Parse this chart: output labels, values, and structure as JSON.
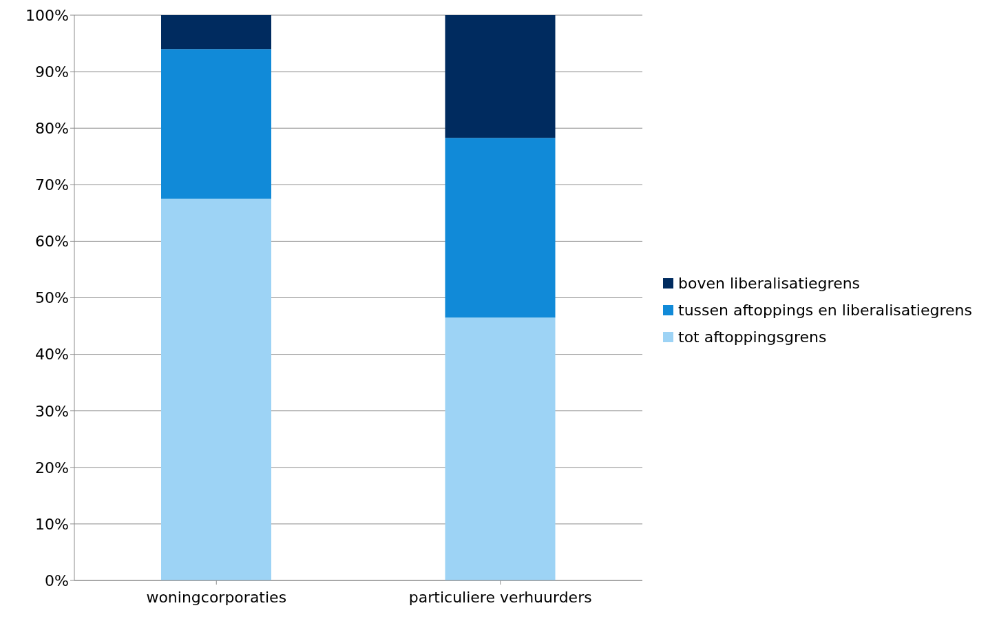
{
  "chart_data": {
    "type": "bar",
    "stacked": true,
    "categories": [
      "woningcorporaties",
      "particuliere verhuurders"
    ],
    "series": [
      {
        "name": "tot aftoppingsgrens",
        "color": "#9dd3f5",
        "values": [
          67.5,
          46.5
        ]
      },
      {
        "name": "tussen aftoppings en liberalisatiegrens",
        "color": "#118ad8",
        "values": [
          26.5,
          31.8
        ]
      },
      {
        "name": "boven liberalisatiegrens",
        "color": "#002b5f",
        "values": [
          6,
          21.7
        ]
      }
    ],
    "ylim": [
      0,
      100
    ],
    "yticks": [
      {
        "value": 0,
        "label": "0%"
      },
      {
        "value": 10,
        "label": "10%"
      },
      {
        "value": 20,
        "label": "20%"
      },
      {
        "value": 30,
        "label": "30%"
      },
      {
        "value": 40,
        "label": "40%"
      },
      {
        "value": 50,
        "label": "50%"
      },
      {
        "value": 60,
        "label": "60%"
      },
      {
        "value": 70,
        "label": "70%"
      },
      {
        "value": 80,
        "label": "80%"
      },
      {
        "value": 90,
        "label": "90%"
      },
      {
        "value": 100,
        "label": "100%"
      }
    ],
    "grid": "y",
    "legend": "right"
  }
}
